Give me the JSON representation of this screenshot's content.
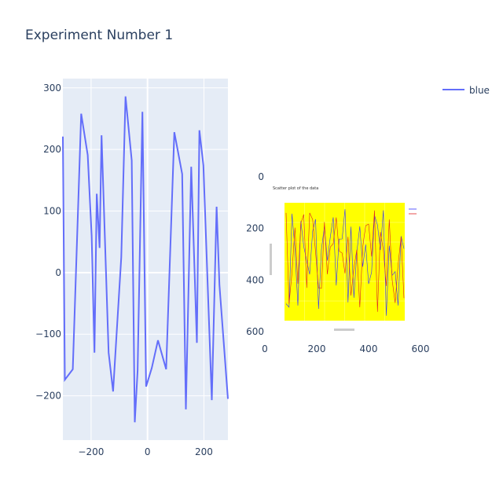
{
  "title": "Experiment Number 1",
  "colors": {
    "plot_bg": "#e5ecf6",
    "line": "#636efa",
    "text": "#2a3f5f",
    "grid": "#ffffff",
    "inset_bg": "#ffff00"
  },
  "legend": {
    "label": "blue",
    "position": "top-right"
  },
  "chart_data": [
    {
      "type": "line",
      "title": "",
      "xlabel": "",
      "ylabel": "",
      "xlim": [
        -300,
        285
      ],
      "ylim": [
        -272,
        315
      ],
      "grid": true,
      "x_ticks": [
        -200,
        0,
        200
      ],
      "y_ticks": [
        -200,
        -100,
        0,
        100,
        200,
        300
      ],
      "series": [
        {
          "name": "blue",
          "x": [
            -300,
            -293,
            -265,
            -235,
            -212,
            -198,
            -188,
            -180,
            -170,
            -163,
            -138,
            -122,
            -93,
            -78,
            -56,
            -45,
            -35,
            -18,
            -5,
            15,
            37,
            66,
            95,
            123,
            136,
            155,
            175,
            184,
            198,
            228,
            245,
            255,
            285
          ],
          "y": [
            221,
            -174,
            -157,
            258,
            191,
            60,
            -130,
            128,
            40,
            223,
            -130,
            -193,
            25,
            286,
            182,
            -243,
            -159,
            261,
            -185,
            -155,
            -110,
            -157,
            228,
            160,
            -222,
            172,
            -114,
            231,
            174,
            -207,
            107,
            -20,
            -205
          ]
        }
      ]
    },
    {
      "type": "scatter",
      "title": "",
      "xlim": [
        0,
        600
      ],
      "ylim": [
        600,
        0
      ],
      "x_ticks": [
        0,
        200,
        400,
        600
      ],
      "y_ticks": [
        0,
        200,
        400,
        600
      ],
      "image_title": "Scatter plot of the data"
    }
  ]
}
